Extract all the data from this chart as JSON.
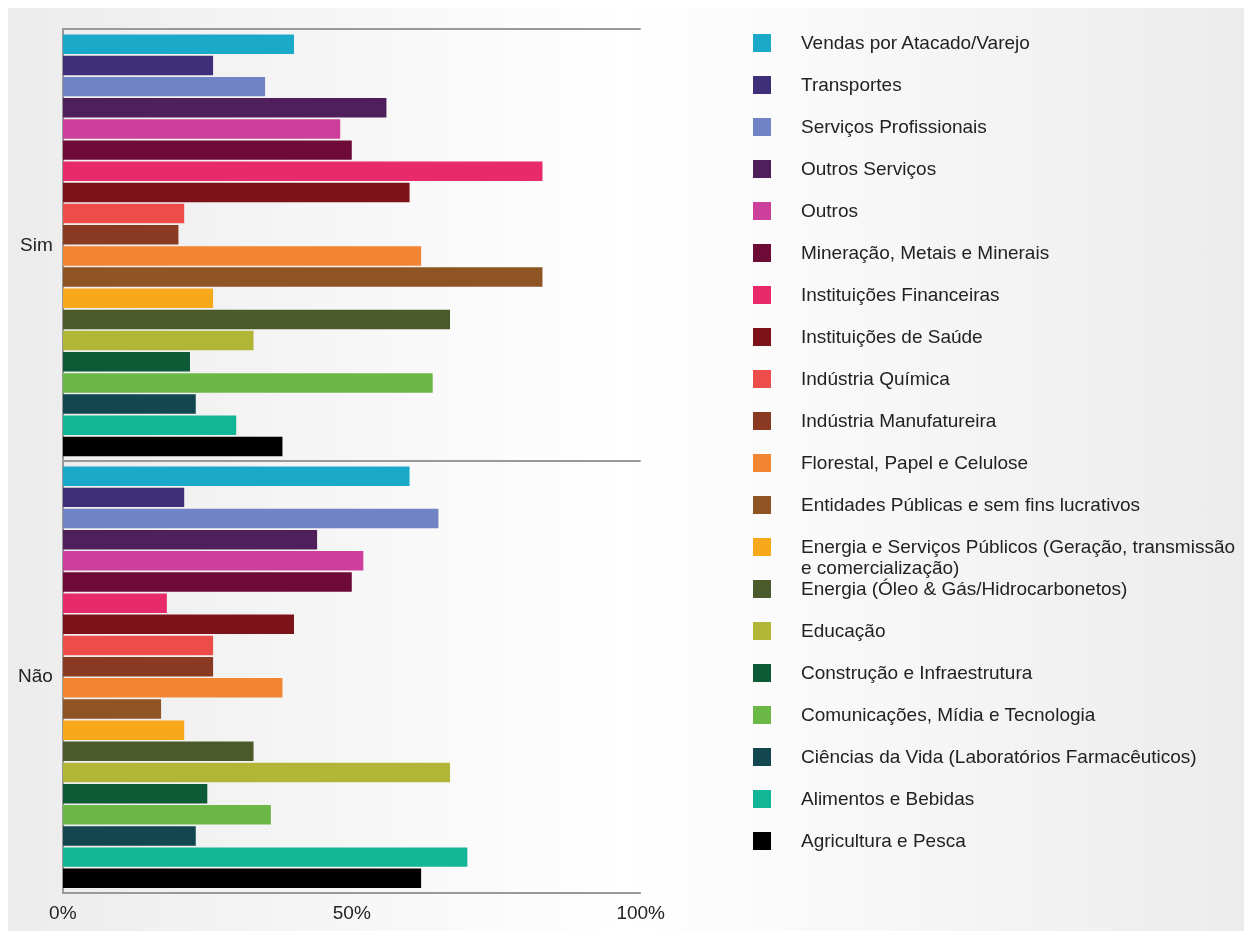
{
  "chart_data": {
    "type": "bar",
    "orientation": "horizontal",
    "categories": [
      "Sim",
      "Não"
    ],
    "xlim": [
      0,
      100
    ],
    "xticks": [
      {
        "value": 0,
        "label": "0%"
      },
      {
        "value": 50,
        "label": "50%"
      },
      {
        "value": 100,
        "label": "100%"
      }
    ],
    "grid": "y",
    "legend": "right",
    "series": [
      {
        "name": "Vendas por Atacado/Varejo",
        "color": "#1aa9c8",
        "values": [
          40,
          60
        ]
      },
      {
        "name": "Transportes",
        "color": "#3f2e78",
        "values": [
          26,
          21
        ]
      },
      {
        "name": "Serviços Profissionais",
        "color": "#7083c4",
        "values": [
          35,
          65
        ]
      },
      {
        "name": "Outros Serviços",
        "color": "#4e1f5a",
        "values": [
          56,
          44
        ]
      },
      {
        "name": "Outros",
        "color": "#cc3f9b",
        "values": [
          48,
          52
        ]
      },
      {
        "name": "Mineração, Metais e Minerais",
        "color": "#6e0a36",
        "values": [
          50,
          50
        ]
      },
      {
        "name": "Instituições Financeiras",
        "color": "#e8296a",
        "values": [
          83,
          18
        ]
      },
      {
        "name": "Instituições de Saúde",
        "color": "#7d1218",
        "values": [
          60,
          40
        ]
      },
      {
        "name": "Indústria Química",
        "color": "#ec4d4b",
        "values": [
          21,
          26
        ]
      },
      {
        "name": "Indústria Manufatureira",
        "color": "#8a3a22",
        "values": [
          20,
          26
        ]
      },
      {
        "name": "Florestal, Papel e Celulose",
        "color": "#f28532",
        "values": [
          62,
          38
        ]
      },
      {
        "name": "Entidades Públicas e sem fins lucrativos",
        "color": "#8e5423",
        "values": [
          83,
          17
        ]
      },
      {
        "name": "Energia e Serviços Públicos (Geração, transmissão e comercialização)",
        "color": "#f7a81b",
        "values": [
          26,
          21
        ]
      },
      {
        "name": "Energia (Óleo & Gás/Hidrocarbonetos)",
        "color": "#4b5a2b",
        "values": [
          67,
          33
        ]
      },
      {
        "name": "Educação",
        "color": "#b1b637",
        "values": [
          33,
          67
        ]
      },
      {
        "name": "Construção e Infraestrutura",
        "color": "#0d5a36",
        "values": [
          22,
          25
        ]
      },
      {
        "name": "Comunicações, Mídia e Tecnologia",
        "color": "#6bb846",
        "values": [
          64,
          36
        ]
      },
      {
        "name": "Ciências da Vida (Laboratórios Farmacêuticos)",
        "color": "#12474f",
        "values": [
          23,
          23
        ]
      },
      {
        "name": "Alimentos e Bebidas",
        "color": "#13b597",
        "values": [
          30,
          70
        ]
      },
      {
        "name": "Agricultura e Pesca",
        "color": "#000000",
        "values": [
          38,
          62
        ]
      }
    ]
  }
}
